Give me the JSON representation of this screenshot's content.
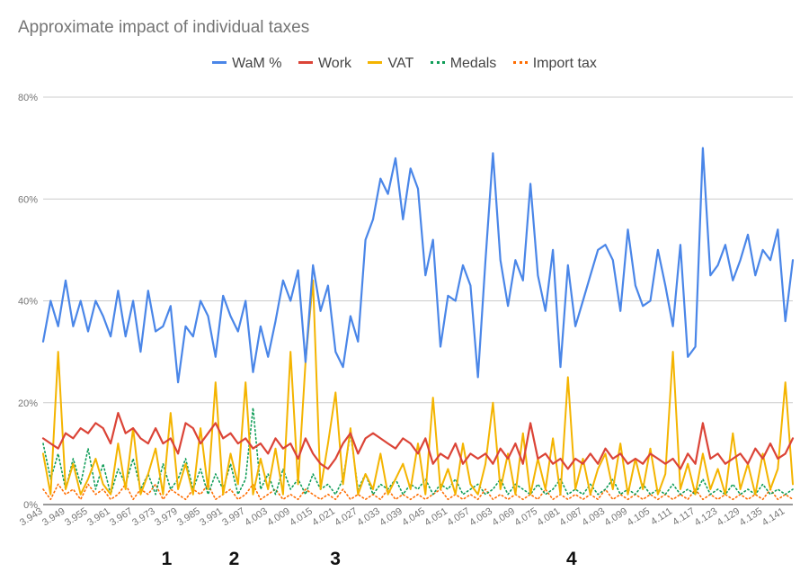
{
  "chart_data": {
    "type": "line",
    "title": "Approximate impact of individual taxes",
    "xlabel": "",
    "ylabel": "",
    "ylim": [
      0,
      80
    ],
    "y_ticks": [
      "0%",
      "20%",
      "40%",
      "60%",
      "80%"
    ],
    "y_tick_values": [
      0,
      20,
      40,
      60,
      80
    ],
    "grid": true,
    "legend_position": "top-center",
    "x_tick_labels": [
      "3.943",
      "3.949",
      "3.955",
      "3.961",
      "3.967",
      "3.973",
      "3.979",
      "3.985",
      "3.991",
      "3.997",
      "4.003",
      "4.009",
      "4.015",
      "4.021",
      "4.027",
      "4.033",
      "4.039",
      "4.045",
      "4.051",
      "4.057",
      "4.063",
      "4.069",
      "4.075",
      "4.081",
      "4.087",
      "4.093",
      "4.099",
      "4.105",
      "4.111",
      "4.117",
      "4.123",
      "4.129",
      "4.135",
      "4.141"
    ],
    "annotations": [
      "1",
      "2",
      "3",
      "4"
    ],
    "annotation_x": [
      3.976,
      3.994,
      4.021,
      4.084
    ],
    "series": [
      {
        "name": "WaM %",
        "color": "#4a86e8",
        "style": "solid",
        "width": 2.2,
        "x": [
          3.943,
          3.945,
          3.947,
          3.949,
          3.951,
          3.953,
          3.955,
          3.957,
          3.959,
          3.961,
          3.963,
          3.965,
          3.967,
          3.969,
          3.971,
          3.973,
          3.975,
          3.977,
          3.979,
          3.981,
          3.983,
          3.985,
          3.987,
          3.989,
          3.991,
          3.993,
          3.995,
          3.997,
          3.999,
          4.001,
          4.003,
          4.005,
          4.007,
          4.009,
          4.011,
          4.013,
          4.015,
          4.017,
          4.019,
          4.021,
          4.023,
          4.025,
          4.027,
          4.029,
          4.031,
          4.033,
          4.035,
          4.037,
          4.039,
          4.041,
          4.043,
          4.045,
          4.047,
          4.049,
          4.051,
          4.053,
          4.055,
          4.057,
          4.059,
          4.061,
          4.063,
          4.065,
          4.067,
          4.069,
          4.071,
          4.073,
          4.075,
          4.077,
          4.079,
          4.081,
          4.083,
          4.085,
          4.087,
          4.089,
          4.091,
          4.093,
          4.095,
          4.097,
          4.099,
          4.101,
          4.103,
          4.105,
          4.107,
          4.109,
          4.111,
          4.113,
          4.115,
          4.117,
          4.119,
          4.121,
          4.123,
          4.125,
          4.127,
          4.129,
          4.131,
          4.133,
          4.135,
          4.137,
          4.139,
          4.141,
          4.143
        ],
        "values": [
          32,
          40,
          35,
          44,
          35,
          40,
          34,
          40,
          37,
          33,
          42,
          33,
          40,
          30,
          42,
          34,
          35,
          39,
          24,
          35,
          33,
          40,
          37,
          29,
          41,
          37,
          34,
          40,
          26,
          35,
          29,
          36,
          44,
          40,
          46,
          28,
          47,
          38,
          43,
          30,
          27,
          37,
          32,
          52,
          56,
          64,
          61,
          68,
          56,
          66,
          62,
          45,
          52,
          31,
          41,
          40,
          47,
          43,
          25,
          48,
          69,
          48,
          39,
          48,
          44,
          63,
          45,
          38,
          50,
          27,
          47,
          35,
          40,
          45,
          50,
          51,
          48,
          38,
          54,
          43,
          39,
          40,
          50,
          43,
          35,
          51,
          29,
          31,
          70,
          45,
          47,
          51,
          44,
          48,
          53,
          45,
          50,
          48,
          54,
          36,
          48
        ]
      },
      {
        "name": "Work",
        "color": "#db4437",
        "style": "solid",
        "width": 2.2,
        "x": [
          3.943,
          3.945,
          3.947,
          3.949,
          3.951,
          3.953,
          3.955,
          3.957,
          3.959,
          3.961,
          3.963,
          3.965,
          3.967,
          3.969,
          3.971,
          3.973,
          3.975,
          3.977,
          3.979,
          3.981,
          3.983,
          3.985,
          3.987,
          3.989,
          3.991,
          3.993,
          3.995,
          3.997,
          3.999,
          4.001,
          4.003,
          4.005,
          4.007,
          4.009,
          4.011,
          4.013,
          4.015,
          4.017,
          4.019,
          4.021,
          4.023,
          4.025,
          4.027,
          4.029,
          4.031,
          4.033,
          4.035,
          4.037,
          4.039,
          4.041,
          4.043,
          4.045,
          4.047,
          4.049,
          4.051,
          4.053,
          4.055,
          4.057,
          4.059,
          4.061,
          4.063,
          4.065,
          4.067,
          4.069,
          4.071,
          4.073,
          4.075,
          4.077,
          4.079,
          4.081,
          4.083,
          4.085,
          4.087,
          4.089,
          4.091,
          4.093,
          4.095,
          4.097,
          4.099,
          4.101,
          4.103,
          4.105,
          4.107,
          4.109,
          4.111,
          4.113,
          4.115,
          4.117,
          4.119,
          4.121,
          4.123,
          4.125,
          4.127,
          4.129,
          4.131,
          4.133,
          4.135,
          4.137,
          4.139,
          4.141,
          4.143
        ],
        "values": [
          13,
          12,
          11,
          14,
          13,
          15,
          14,
          16,
          15,
          12,
          18,
          14,
          15,
          13,
          12,
          15,
          12,
          13,
          10,
          16,
          15,
          12,
          14,
          16,
          13,
          14,
          12,
          13,
          11,
          12,
          10,
          13,
          11,
          12,
          9,
          13,
          10,
          8,
          7,
          9,
          12,
          14,
          10,
          13,
          14,
          13,
          12,
          11,
          13,
          12,
          10,
          13,
          8,
          10,
          9,
          12,
          8,
          10,
          9,
          10,
          8,
          11,
          9,
          12,
          8,
          16,
          9,
          10,
          8,
          9,
          7,
          9,
          8,
          10,
          8,
          11,
          9,
          10,
          8,
          9,
          8,
          10,
          9,
          8,
          9,
          7,
          10,
          8,
          16,
          9,
          10,
          8,
          9,
          10,
          8,
          11,
          9,
          12,
          9,
          10,
          13
        ]
      },
      {
        "name": "VAT",
        "color": "#f4b400",
        "style": "solid",
        "width": 2.0,
        "x": [
          3.943,
          3.945,
          3.947,
          3.949,
          3.951,
          3.953,
          3.955,
          3.957,
          3.959,
          3.961,
          3.963,
          3.965,
          3.967,
          3.969,
          3.971,
          3.973,
          3.975,
          3.977,
          3.979,
          3.981,
          3.983,
          3.985,
          3.987,
          3.989,
          3.991,
          3.993,
          3.995,
          3.997,
          3.999,
          4.001,
          4.003,
          4.005,
          4.007,
          4.009,
          4.011,
          4.013,
          4.015,
          4.017,
          4.019,
          4.021,
          4.023,
          4.025,
          4.027,
          4.029,
          4.031,
          4.033,
          4.035,
          4.037,
          4.039,
          4.041,
          4.043,
          4.045,
          4.047,
          4.049,
          4.051,
          4.053,
          4.055,
          4.057,
          4.059,
          4.061,
          4.063,
          4.065,
          4.067,
          4.069,
          4.071,
          4.073,
          4.075,
          4.077,
          4.079,
          4.081,
          4.083,
          4.085,
          4.087,
          4.089,
          4.091,
          4.093,
          4.095,
          4.097,
          4.099,
          4.101,
          4.103,
          4.105,
          4.107,
          4.109,
          4.111,
          4.113,
          4.115,
          4.117,
          4.119,
          4.121,
          4.123,
          4.125,
          4.127,
          4.129,
          4.131,
          4.133,
          4.135,
          4.137,
          4.139,
          4.141,
          4.143
        ],
        "values": [
          10,
          2,
          30,
          3,
          8,
          2,
          5,
          9,
          4,
          2,
          12,
          3,
          15,
          2,
          6,
          11,
          2,
          18,
          3,
          8,
          2,
          15,
          3,
          24,
          2,
          10,
          4,
          24,
          2,
          9,
          3,
          11,
          2,
          30,
          4,
          28,
          44,
          3,
          12,
          22,
          4,
          15,
          2,
          6,
          3,
          10,
          2,
          5,
          8,
          3,
          12,
          2,
          21,
          3,
          7,
          2,
          12,
          4,
          2,
          8,
          20,
          3,
          10,
          2,
          14,
          2,
          9,
          3,
          13,
          2,
          25,
          3,
          9,
          2,
          7,
          10,
          3,
          12,
          2,
          9,
          3,
          11,
          2,
          6,
          30,
          3,
          8,
          2,
          10,
          3,
          7,
          2,
          14,
          3,
          8,
          2,
          10,
          3,
          7,
          24,
          4
        ]
      },
      {
        "name": "Medals",
        "color": "#0f9d58",
        "style": "dotted",
        "width": 1.6,
        "x": [
          3.943,
          3.945,
          3.947,
          3.949,
          3.951,
          3.953,
          3.955,
          3.957,
          3.959,
          3.961,
          3.963,
          3.965,
          3.967,
          3.969,
          3.971,
          3.973,
          3.975,
          3.977,
          3.979,
          3.981,
          3.983,
          3.985,
          3.987,
          3.989,
          3.991,
          3.993,
          3.995,
          3.997,
          3.999,
          4.001,
          4.003,
          4.005,
          4.007,
          4.009,
          4.011,
          4.013,
          4.015,
          4.017,
          4.019,
          4.021,
          4.023,
          4.025,
          4.027,
          4.029,
          4.031,
          4.033,
          4.035,
          4.037,
          4.039,
          4.041,
          4.043,
          4.045,
          4.047,
          4.049,
          4.051,
          4.053,
          4.055,
          4.057,
          4.059,
          4.061,
          4.063,
          4.065,
          4.067,
          4.069,
          4.071,
          4.073,
          4.075,
          4.077,
          4.079,
          4.081,
          4.083,
          4.085,
          4.087,
          4.089,
          4.091,
          4.093,
          4.095,
          4.097,
          4.099,
          4.101,
          4.103,
          4.105,
          4.107,
          4.109,
          4.111,
          4.113,
          4.115,
          4.117,
          4.119,
          4.121,
          4.123,
          4.125,
          4.127,
          4.129,
          4.131,
          4.133,
          4.135,
          4.137,
          4.139,
          4.141,
          4.143
        ],
        "values": [
          12,
          5,
          10,
          3,
          9,
          4,
          11,
          3,
          8,
          2,
          7,
          4,
          9,
          3,
          6,
          2,
          8,
          3,
          5,
          9,
          3,
          7,
          2,
          6,
          3,
          8,
          2,
          5,
          19,
          3,
          6,
          2,
          7,
          3,
          5,
          2,
          6,
          3,
          4,
          2,
          5,
          14,
          3,
          6,
          2,
          4,
          3,
          5,
          2,
          4,
          3,
          5,
          2,
          4,
          3,
          5,
          2,
          3,
          4,
          2,
          3,
          5,
          2,
          4,
          3,
          2,
          4,
          2,
          3,
          5,
          2,
          3,
          2,
          4,
          2,
          3,
          5,
          2,
          3,
          2,
          4,
          2,
          3,
          2,
          4,
          2,
          3,
          2,
          5,
          2,
          3,
          2,
          4,
          2,
          3,
          2,
          4,
          2,
          3,
          2,
          3
        ]
      },
      {
        "name": "Import tax",
        "color": "#ff6d01",
        "style": "dotted",
        "width": 1.6,
        "x": [
          3.943,
          3.945,
          3.947,
          3.949,
          3.951,
          3.953,
          3.955,
          3.957,
          3.959,
          3.961,
          3.963,
          3.965,
          3.967,
          3.969,
          3.971,
          3.973,
          3.975,
          3.977,
          3.979,
          3.981,
          3.983,
          3.985,
          3.987,
          3.989,
          3.991,
          3.993,
          3.995,
          3.997,
          3.999,
          4.001,
          4.003,
          4.005,
          4.007,
          4.009,
          4.011,
          4.013,
          4.015,
          4.017,
          4.019,
          4.021,
          4.023,
          4.025,
          4.027,
          4.029,
          4.031,
          4.033,
          4.035,
          4.037,
          4.039,
          4.041,
          4.043,
          4.045,
          4.047,
          4.049,
          4.051,
          4.053,
          4.055,
          4.057,
          4.059,
          4.061,
          4.063,
          4.065,
          4.067,
          4.069,
          4.071,
          4.073,
          4.075,
          4.077,
          4.079,
          4.081,
          4.083,
          4.085,
          4.087,
          4.089,
          4.091,
          4.093,
          4.095,
          4.097,
          4.099,
          4.101,
          4.103,
          4.105,
          4.107,
          4.109,
          4.111,
          4.113,
          4.115,
          4.117,
          4.119,
          4.121,
          4.123,
          4.125,
          4.127,
          4.129,
          4.131,
          4.133,
          4.135,
          4.137,
          4.139,
          4.141,
          4.143
        ],
        "values": [
          3,
          1,
          4,
          2,
          3,
          1,
          4,
          2,
          3,
          1,
          2,
          4,
          1,
          3,
          2,
          4,
          1,
          3,
          2,
          1,
          3,
          2,
          4,
          1,
          2,
          3,
          1,
          2,
          4,
          1,
          2,
          3,
          1,
          2,
          1,
          3,
          2,
          1,
          2,
          1,
          3,
          1,
          2,
          1,
          2,
          1,
          3,
          1,
          2,
          1,
          2,
          1,
          2,
          3,
          1,
          2,
          1,
          2,
          1,
          3,
          1,
          2,
          1,
          2,
          1,
          2,
          1,
          3,
          1,
          2,
          1,
          2,
          1,
          2,
          1,
          3,
          1,
          2,
          1,
          2,
          1,
          2,
          1,
          2,
          1,
          2,
          1,
          3,
          1,
          2,
          1,
          2,
          1,
          2,
          1,
          2,
          1,
          3,
          1,
          2,
          1
        ]
      }
    ]
  }
}
